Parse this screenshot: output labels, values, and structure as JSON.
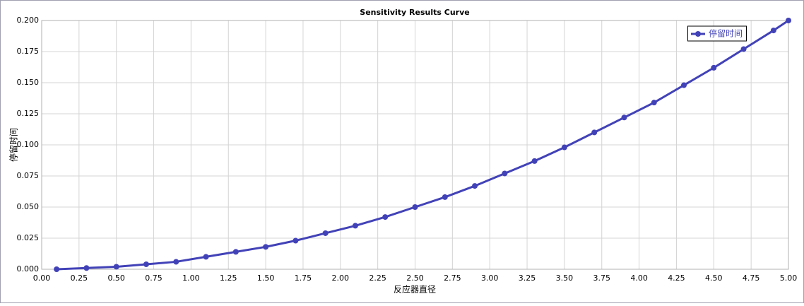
{
  "chart_data": {
    "type": "line",
    "title": "Sensitivity Results Curve",
    "x_label": "反应器直径",
    "y_label": "停留时间",
    "x": [
      0.1,
      0.3,
      0.5,
      0.7,
      0.9,
      1.1,
      1.3,
      1.5,
      1.7,
      1.9,
      2.1,
      2.3,
      2.5,
      2.7,
      2.9,
      3.1,
      3.3,
      3.5,
      3.7,
      3.9,
      4.1,
      4.3,
      4.5,
      4.7,
      4.9,
      5.0
    ],
    "series": [
      {
        "name": "停留时间",
        "color": "#4242b8",
        "values": [
          0.0,
          0.001,
          0.002,
          0.004,
          0.006,
          0.01,
          0.014,
          0.018,
          0.023,
          0.029,
          0.035,
          0.042,
          0.05,
          0.058,
          0.067,
          0.077,
          0.087,
          0.098,
          0.11,
          0.122,
          0.134,
          0.148,
          0.162,
          0.177,
          0.192,
          0.2
        ]
      }
    ],
    "xlim": [
      0,
      5
    ],
    "ylim": [
      0,
      0.2
    ],
    "xticks": [
      {
        "value": 0,
        "label": "0.00"
      },
      {
        "value": 0.25,
        "label": "0.25"
      },
      {
        "value": 0.5,
        "label": "0.50"
      },
      {
        "value": 0.75,
        "label": "0.75"
      },
      {
        "value": 1,
        "label": "1.00"
      },
      {
        "value": 1.25,
        "label": "1.25"
      },
      {
        "value": 1.5,
        "label": "1.50"
      },
      {
        "value": 1.75,
        "label": "1.75"
      },
      {
        "value": 2,
        "label": "2.00"
      },
      {
        "value": 2.25,
        "label": "2.25"
      },
      {
        "value": 2.5,
        "label": "2.50"
      },
      {
        "value": 2.75,
        "label": "2.75"
      },
      {
        "value": 3,
        "label": "3.00"
      },
      {
        "value": 3.25,
        "label": "3.25"
      },
      {
        "value": 3.5,
        "label": "3.50"
      },
      {
        "value": 3.75,
        "label": "3.75"
      },
      {
        "value": 4,
        "label": "4.00"
      },
      {
        "value": 4.25,
        "label": "4.25"
      },
      {
        "value": 4.5,
        "label": "4.50"
      },
      {
        "value": 4.75,
        "label": "4.75"
      },
      {
        "value": 5,
        "label": "5.00"
      }
    ],
    "yticks": [
      {
        "value": 0,
        "label": "0.000"
      },
      {
        "value": 0.025,
        "label": "0.025"
      },
      {
        "value": 0.05,
        "label": "0.050"
      },
      {
        "value": 0.075,
        "label": "0.075"
      },
      {
        "value": 0.1,
        "label": "0.100"
      },
      {
        "value": 0.125,
        "label": "0.125"
      },
      {
        "value": 0.15,
        "label": "0.150"
      },
      {
        "value": 0.175,
        "label": "0.175"
      },
      {
        "value": 0.2,
        "label": "0.200"
      }
    ],
    "grid": true,
    "legend": "upper right"
  }
}
